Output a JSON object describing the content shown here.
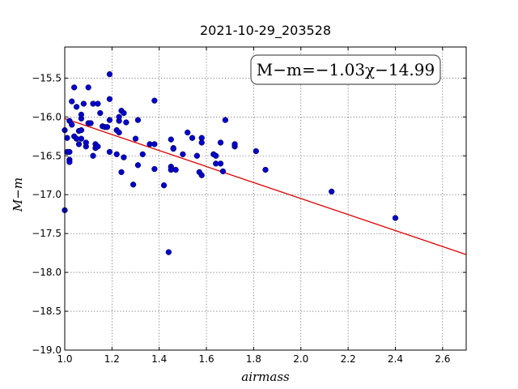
{
  "chart_data": {
    "type": "scatter",
    "title": "2021-10-29_203528",
    "xlabel": "airmass",
    "ylabel": "M−m",
    "annotation": "M−m=−1.03χ−14.99",
    "xlim": [
      1.0,
      2.7
    ],
    "ylim": [
      -19.0,
      -15.1
    ],
    "xticks": [
      "1.0",
      "1.2",
      "1.4",
      "1.6",
      "1.8",
      "2.0",
      "2.2",
      "2.4",
      "2.6"
    ],
    "xtick_values": [
      1.0,
      1.2,
      1.4,
      1.6,
      1.8,
      2.0,
      2.2,
      2.4,
      2.6
    ],
    "yticks": [
      "−15.5",
      "−16.0",
      "−16.5",
      "−17.0",
      "−17.5",
      "−18.0",
      "−18.5",
      "−19.0"
    ],
    "ytick_values": [
      -15.5,
      -16.0,
      -16.5,
      -17.0,
      -17.5,
      -18.0,
      -18.5,
      -19.0
    ],
    "grid": true,
    "fit": {
      "slope": -1.03,
      "intercept": -14.99
    },
    "colors": {
      "points": "#0000cc",
      "fit_line": "#dd0000",
      "frame": "#000000"
    },
    "points": [
      [
        1.0,
        -17.2
      ],
      [
        1.0,
        -16.17
      ],
      [
        1.01,
        -16.27
      ],
      [
        1.01,
        -16.45
      ],
      [
        1.02,
        -16.55
      ],
      [
        1.02,
        -16.58
      ],
      [
        1.02,
        -16.05
      ],
      [
        1.02,
        -16.45
      ],
      [
        1.03,
        -15.8
      ],
      [
        1.03,
        -16.1
      ],
      [
        1.04,
        -15.62
      ],
      [
        1.04,
        -16.25
      ],
      [
        1.05,
        -16.28
      ],
      [
        1.05,
        -15.87
      ],
      [
        1.06,
        -16.35
      ],
      [
        1.06,
        -16.18
      ],
      [
        1.07,
        -16.17
      ],
      [
        1.07,
        -16.28
      ],
      [
        1.07,
        -16.02
      ],
      [
        1.07,
        -15.97
      ],
      [
        1.08,
        -15.83
      ],
      [
        1.09,
        -16.38
      ],
      [
        1.09,
        -16.33
      ],
      [
        1.1,
        -16.08
      ],
      [
        1.1,
        -15.62
      ],
      [
        1.11,
        -16.08
      ],
      [
        1.12,
        -16.5
      ],
      [
        1.12,
        -15.83
      ],
      [
        1.13,
        -16.4
      ],
      [
        1.13,
        -16.35
      ],
      [
        1.14,
        -15.83
      ],
      [
        1.14,
        -16.38
      ],
      [
        1.15,
        -15.95
      ],
      [
        1.16,
        -16.12
      ],
      [
        1.17,
        -16.13
      ],
      [
        1.18,
        -16.13
      ],
      [
        1.19,
        -15.45
      ],
      [
        1.19,
        -15.77
      ],
      [
        1.19,
        -16.04
      ],
      [
        1.19,
        -16.45
      ],
      [
        1.22,
        -16.48
      ],
      [
        1.22,
        -16.17
      ],
      [
        1.23,
        -16.05
      ],
      [
        1.23,
        -16.0
      ],
      [
        1.23,
        -16.2
      ],
      [
        1.24,
        -16.71
      ],
      [
        1.24,
        -15.92
      ],
      [
        1.25,
        -15.95
      ],
      [
        1.25,
        -16.52
      ],
      [
        1.26,
        -16.07
      ],
      [
        1.29,
        -16.87
      ],
      [
        1.3,
        -16.28
      ],
      [
        1.31,
        -16.62
      ],
      [
        1.31,
        -16.04
      ],
      [
        1.33,
        -16.48
      ],
      [
        1.36,
        -16.35
      ],
      [
        1.38,
        -15.79
      ],
      [
        1.38,
        -16.35
      ],
      [
        1.38,
        -16.67
      ],
      [
        1.42,
        -16.88
      ],
      [
        1.44,
        -17.74
      ],
      [
        1.45,
        -16.64
      ],
      [
        1.45,
        -16.68
      ],
      [
        1.45,
        -16.29
      ],
      [
        1.46,
        -16.4
      ],
      [
        1.46,
        -16.41
      ],
      [
        1.47,
        -16.68
      ],
      [
        1.5,
        -16.48
      ],
      [
        1.52,
        -16.2
      ],
      [
        1.54,
        -16.27
      ],
      [
        1.56,
        -16.5
      ],
      [
        1.57,
        -16.71
      ],
      [
        1.58,
        -16.75
      ],
      [
        1.58,
        -16.27
      ],
      [
        1.58,
        -16.33
      ],
      [
        1.63,
        -16.48
      ],
      [
        1.64,
        -16.5
      ],
      [
        1.64,
        -16.6
      ],
      [
        1.66,
        -16.6
      ],
      [
        1.66,
        -16.33
      ],
      [
        1.67,
        -16.7
      ],
      [
        1.68,
        -16.04
      ],
      [
        1.72,
        -16.38
      ],
      [
        1.72,
        -16.35
      ],
      [
        1.81,
        -16.44
      ],
      [
        1.85,
        -16.68
      ],
      [
        2.13,
        -16.96
      ],
      [
        2.4,
        -17.3
      ]
    ]
  }
}
